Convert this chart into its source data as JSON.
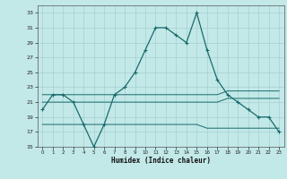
{
  "xlabel": "Humidex (Indice chaleur)",
  "bg_color": "#c2e8e8",
  "line_color": "#1a6b6b",
  "grid_color": "#a8d0d0",
  "xlim": [
    -0.5,
    23.5
  ],
  "ylim": [
    15,
    34
  ],
  "yticks": [
    15,
    17,
    19,
    21,
    23,
    25,
    27,
    29,
    31,
    33
  ],
  "xticks": [
    0,
    1,
    2,
    3,
    4,
    5,
    6,
    7,
    8,
    9,
    10,
    11,
    12,
    13,
    14,
    15,
    16,
    17,
    18,
    19,
    20,
    21,
    22,
    23
  ],
  "main_line": [
    20,
    22,
    22,
    21,
    18,
    15,
    18,
    22,
    23,
    25,
    28,
    31,
    31,
    30,
    29,
    33,
    28,
    24,
    22,
    21,
    20,
    19,
    19,
    17
  ],
  "max_line": [
    22,
    22,
    22,
    22,
    22,
    22,
    22,
    22,
    22,
    22,
    22,
    22,
    22,
    22,
    22,
    22,
    22,
    22,
    22.5,
    22.5,
    22.5,
    22.5,
    22.5,
    22.5
  ],
  "avg_line": [
    21,
    21,
    21,
    21,
    21,
    21,
    21,
    21,
    21,
    21,
    21,
    21,
    21,
    21,
    21,
    21,
    21,
    21,
    21.5,
    21.5,
    21.5,
    21.5,
    21.5,
    21.5
  ],
  "min_line": [
    18,
    18,
    18,
    18,
    18,
    18,
    18,
    18,
    18,
    18,
    18,
    18,
    18,
    18,
    18,
    18,
    17.5,
    17.5,
    17.5,
    17.5,
    17.5,
    17.5,
    17.5,
    17.5
  ]
}
